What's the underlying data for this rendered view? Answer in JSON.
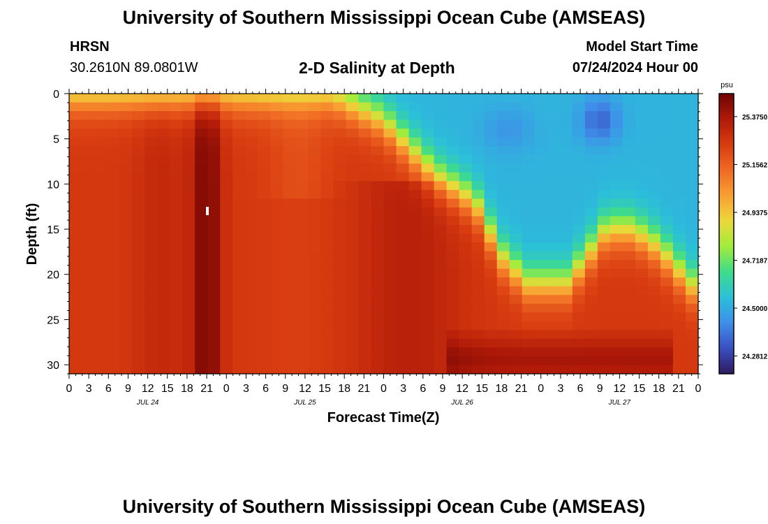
{
  "header": {
    "title": "University of Southern Mississippi Ocean Cube (AMSEAS)",
    "station": "HRSN",
    "coords": "30.2610N  89.0801W",
    "model_start_label": "Model Start Time",
    "model_start_value": "07/24/2024 Hour 00"
  },
  "footer": {
    "title": "University of Southern Mississippi Ocean Cube (AMSEAS)"
  },
  "chart_data": {
    "type": "heatmap",
    "title": "2-D Salinity at Depth",
    "xlabel": "Forecast Time(Z)",
    "ylabel": "Depth (ft)",
    "x_hour_labels": [
      "0",
      "3",
      "6",
      "9",
      "12",
      "15",
      "18",
      "21",
      "0",
      "3",
      "6",
      "9",
      "12",
      "15",
      "18",
      "21",
      "0",
      "3",
      "6",
      "9",
      "12",
      "15",
      "18",
      "21",
      "0",
      "3",
      "6",
      "9",
      "12",
      "15",
      "18",
      "21",
      "0"
    ],
    "date_labels": [
      {
        "label": "JUL 24",
        "hour": 12
      },
      {
        "label": "JUL 25",
        "hour": 36
      },
      {
        "label": "JUL 26",
        "hour": 60
      },
      {
        "label": "JUL 27",
        "hour": 84
      }
    ],
    "xlim": [
      0,
      96
    ],
    "y_ticks": [
      0,
      5,
      10,
      15,
      20,
      25,
      30
    ],
    "ylim": [
      0,
      31
    ],
    "colorbar": {
      "unit": "psu",
      "ticks": [
        "25.3750",
        "25.1562",
        "24.9375",
        "24.7187",
        "24.5000",
        "24.2812"
      ],
      "tick_values": [
        25.375,
        25.1562,
        24.9375,
        24.7187,
        24.5,
        24.2812
      ],
      "range": [
        24.2,
        25.48
      ],
      "colors": [
        "#2e1a5e",
        "#3a4fc0",
        "#3f8fea",
        "#2bc0d8",
        "#3fdc8a",
        "#a2ec3c",
        "#ecd83a",
        "#f9a032",
        "#f06a24",
        "#d83c10",
        "#b01a08",
        "#6e0404"
      ]
    },
    "field_cols": 50,
    "field_rows": 32,
    "field_description_keys": {
      "surface_bathy_min": 24.23,
      "hot_column_hour": 21,
      "hot_value": 25.46,
      "surface_low_value": 24.5
    }
  }
}
